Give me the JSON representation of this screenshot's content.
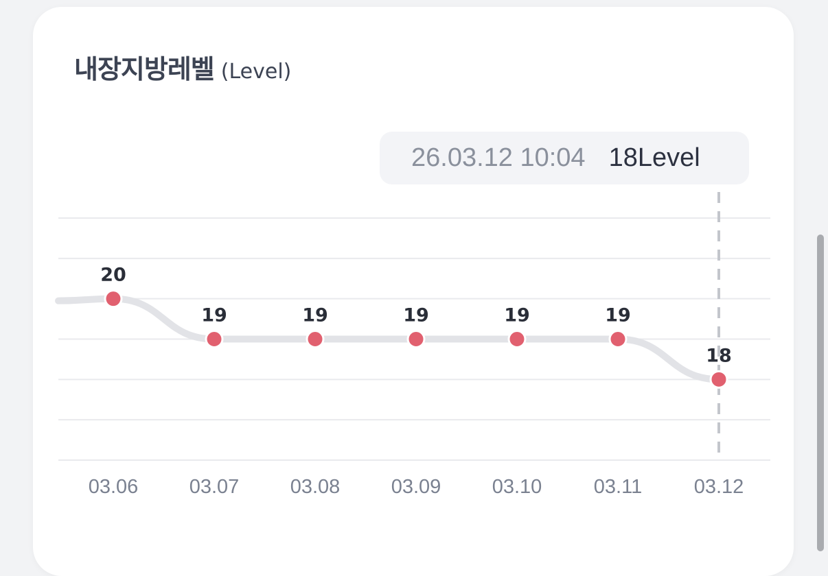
{
  "card": {
    "title": "내장지방레벨",
    "unit": "(Level)"
  },
  "tooltip": {
    "time": "26.03.12 10:04",
    "value": "18Level"
  },
  "chart_data": {
    "type": "line",
    "categories": [
      "03.06",
      "03.07",
      "03.08",
      "03.09",
      "03.10",
      "03.11",
      "03.12"
    ],
    "series": [
      {
        "values": [
          20,
          19,
          19,
          19,
          19,
          19,
          18
        ]
      }
    ],
    "data_labels": [
      "20",
      "19",
      "19",
      "19",
      "19",
      "19",
      "18"
    ],
    "ylim": [
      16,
      22
    ],
    "grid": true,
    "smooth": true,
    "highlighted_index": 6,
    "colors": {
      "line": "#e2e3e7",
      "marker": "#e1606f",
      "marker_stroke": "#ffffff",
      "grid": "#e9eaed",
      "crosshair": "#c3c6cc",
      "tick_label": "#7a8190",
      "data_label": "#2a2e38"
    }
  }
}
